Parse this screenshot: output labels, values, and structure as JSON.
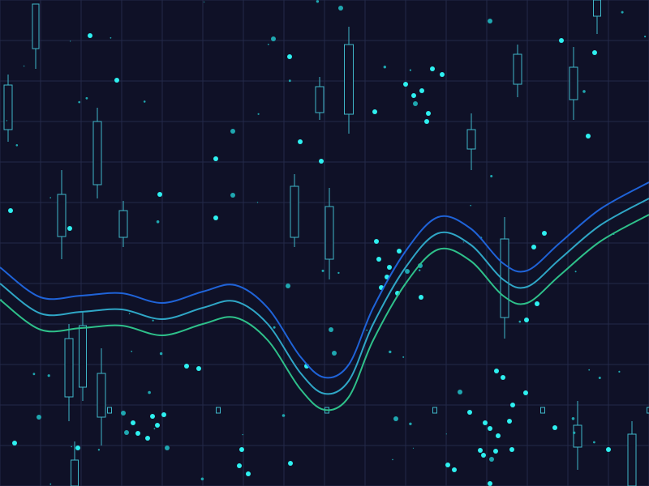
{
  "colors": {
    "background": "#0f1127",
    "grid": "#23294a",
    "candle": "#3fb6c8",
    "dot": "#2ef0f0",
    "dot_dim": "#1fa7b0",
    "line_top": "#1f63d8",
    "line_mid": "#2fa6c6",
    "line_bottom": "#2ec08a"
  },
  "icons": {
    "decorative": "abstract-financial-background"
  }
}
